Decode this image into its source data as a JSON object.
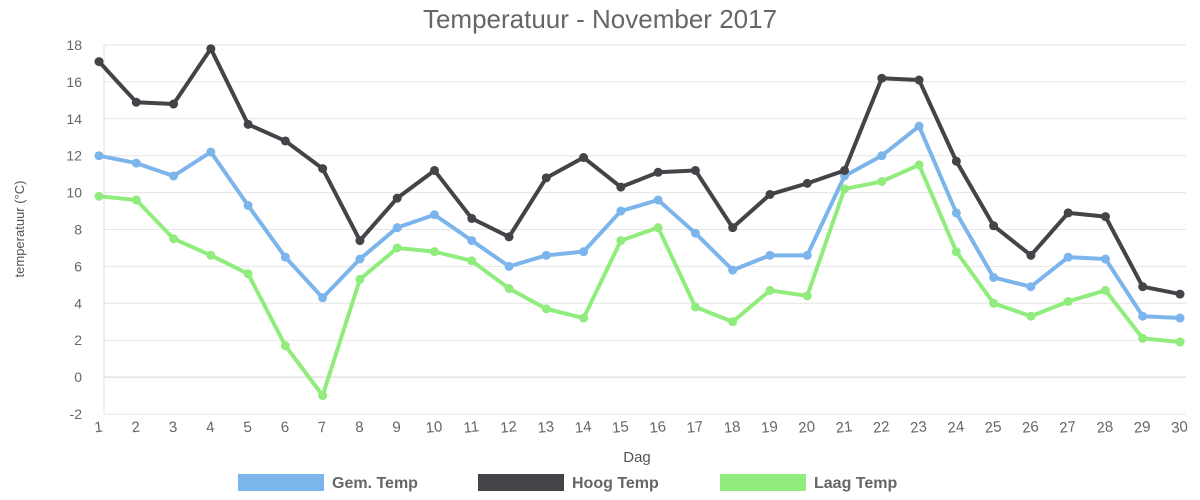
{
  "chart_data": {
    "type": "line",
    "title": "Temperatuur - November 2017",
    "xlabel": "Dag",
    "ylabel": "temperatuur (°C)",
    "ylim": [
      -2,
      18
    ],
    "yticks": [
      -2,
      0,
      2,
      4,
      6,
      8,
      10,
      12,
      14,
      16,
      18
    ],
    "grid": true,
    "legend_position": "bottom",
    "x": [
      1,
      2,
      3,
      4,
      5,
      6,
      7,
      8,
      9,
      10,
      11,
      12,
      13,
      14,
      15,
      16,
      17,
      18,
      19,
      20,
      21,
      22,
      23,
      24,
      25,
      26,
      27,
      28,
      29,
      30
    ],
    "series": [
      {
        "name": "Gem. Temp",
        "color": "#7cb5ec",
        "values": [
          12.0,
          11.6,
          10.9,
          12.2,
          9.3,
          6.5,
          4.3,
          6.4,
          8.1,
          8.8,
          7.4,
          6.0,
          6.6,
          6.8,
          9.0,
          9.6,
          7.8,
          5.8,
          6.6,
          6.6,
          10.9,
          12.0,
          13.6,
          8.9,
          5.4,
          4.9,
          6.5,
          6.4,
          3.3,
          3.2
        ]
      },
      {
        "name": "Hoog Temp",
        "color": "#434348",
        "values": [
          17.1,
          14.9,
          14.8,
          17.8,
          13.7,
          12.8,
          11.3,
          7.4,
          9.7,
          11.2,
          8.6,
          7.6,
          10.8,
          11.9,
          10.3,
          11.1,
          11.2,
          8.1,
          9.9,
          10.5,
          11.2,
          16.2,
          16.1,
          11.7,
          8.2,
          6.6,
          8.9,
          8.7,
          4.9,
          4.5
        ]
      },
      {
        "name": "Laag Temp",
        "color": "#90ed7d",
        "values": [
          9.8,
          9.6,
          7.5,
          6.6,
          5.6,
          1.7,
          -1.0,
          5.3,
          7.0,
          6.8,
          6.3,
          4.8,
          3.7,
          3.2,
          7.4,
          8.1,
          3.8,
          3.0,
          4.7,
          4.4,
          10.2,
          10.6,
          11.5,
          6.8,
          4.0,
          3.3,
          4.1,
          4.7,
          2.1,
          1.9
        ]
      }
    ]
  }
}
